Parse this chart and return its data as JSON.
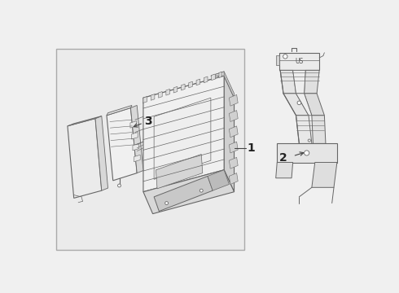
{
  "background_color": "#f0f0f0",
  "white": "#ffffff",
  "line_color": "#666666",
  "dark_line": "#444444",
  "label_color": "#222222",
  "box_border": "#999999",
  "font_size_labels": 10,
  "label_1": "1",
  "label_2": "2",
  "label_3": "3"
}
